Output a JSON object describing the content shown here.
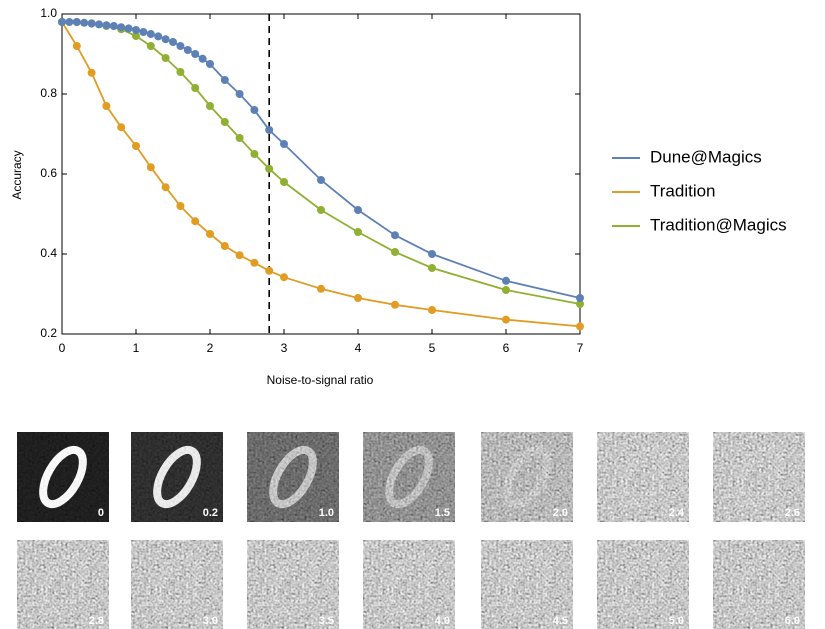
{
  "chart_data": {
    "type": "line",
    "xlabel": "Noise-to-signal ratio",
    "ylabel": "Accuracy",
    "xlim": [
      0,
      7
    ],
    "xticks": [
      0,
      1,
      2,
      3,
      4,
      5,
      6,
      7
    ],
    "ylim": [
      0.2,
      1
    ],
    "yticks": [
      0.2,
      0.4,
      0.6,
      0.8,
      {
        "value": 1,
        "label": "1.0"
      }
    ],
    "vline": 2.8,
    "series": [
      {
        "name": "Dune@Magics",
        "color": "#5e81b5",
        "x": [
          0,
          0.1,
          0.2,
          0.3,
          0.4,
          0.5,
          0.6,
          0.7,
          0.8,
          0.9,
          1,
          1.1,
          1.2,
          1.3,
          1.4,
          1.5,
          1.6,
          1.7,
          1.8,
          1.9,
          2,
          2.2,
          2.4,
          2.6,
          2.8,
          3,
          3.5,
          4,
          4.5,
          5,
          6,
          7
        ],
        "values": [
          0.98,
          0.98,
          0.98,
          0.978,
          0.976,
          0.974,
          0.972,
          0.97,
          0.967,
          0.964,
          0.96,
          0.955,
          0.95,
          0.944,
          0.937,
          0.93,
          0.92,
          0.91,
          0.9,
          0.888,
          0.875,
          0.835,
          0.8,
          0.76,
          0.71,
          0.675,
          0.585,
          0.51,
          0.447,
          0.4,
          0.333,
          0.29
        ]
      },
      {
        "name": "Tradition",
        "color": "#e19c24",
        "x": [
          0,
          0.2,
          0.4,
          0.6,
          0.8,
          1,
          1.2,
          1.4,
          1.6,
          1.8,
          2,
          2.2,
          2.4,
          2.6,
          2.8,
          3,
          3.5,
          4,
          4.5,
          5,
          6,
          7
        ],
        "values": [
          0.98,
          0.92,
          0.853,
          0.77,
          0.717,
          0.67,
          0.617,
          0.567,
          0.52,
          0.482,
          0.45,
          0.42,
          0.397,
          0.378,
          0.358,
          0.342,
          0.313,
          0.29,
          0.273,
          0.26,
          0.236,
          0.219
        ]
      },
      {
        "name": "Tradition@Magics",
        "color": "#8fb032",
        "x": [
          0,
          0.2,
          0.4,
          0.6,
          0.8,
          1,
          1.2,
          1.4,
          1.6,
          1.8,
          2,
          2.2,
          2.4,
          2.6,
          2.8,
          3,
          3.5,
          4,
          4.5,
          5,
          6,
          7
        ],
        "values": [
          0.98,
          0.98,
          0.977,
          0.97,
          0.962,
          0.945,
          0.92,
          0.89,
          0.855,
          0.815,
          0.77,
          0.73,
          0.69,
          0.65,
          0.613,
          0.58,
          0.51,
          0.455,
          0.405,
          0.365,
          0.31,
          0.275
        ]
      }
    ],
    "thumbnails": [
      "0",
      "0.2",
      "1.0",
      "1.5",
      "2.0",
      "2.4",
      "2.6",
      "2.8",
      "3.0",
      "3.5",
      "4.0",
      "4.5",
      "5.0",
      "6.0"
    ]
  }
}
